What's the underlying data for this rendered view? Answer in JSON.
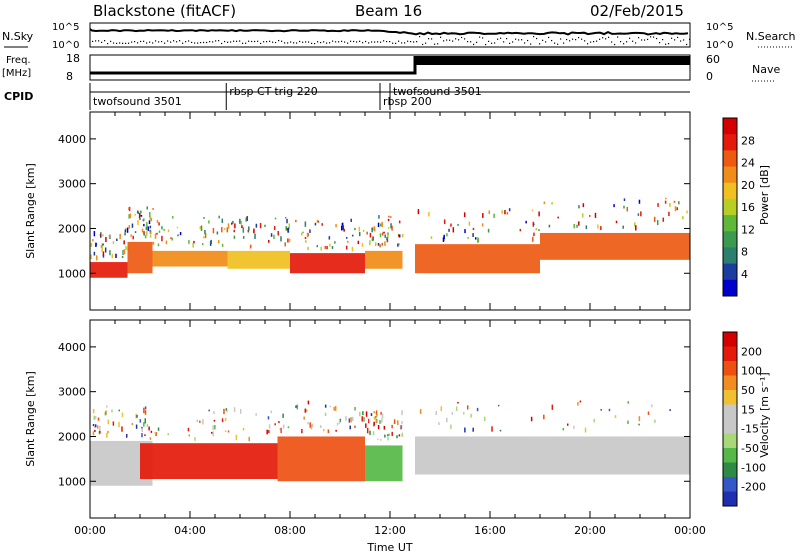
{
  "header": {
    "station": "Blackstone (fitACF)",
    "beam": "Beam 16",
    "date": "02/Feb/2015"
  },
  "strips": {
    "nsky_label": "N.Sky",
    "nsearch_label": "N.Search",
    "noise_ticks": [
      "10^5",
      "10^0"
    ],
    "freq_label_1": "Freq.",
    "freq_label_2": "[MHz]",
    "freq_ticks": [
      "18",
      "8"
    ],
    "nave_label": "Nave",
    "nave_ticks": [
      "60",
      "0"
    ],
    "cpid_label": "CPID"
  },
  "cpid": [
    {
      "name": "twofsound 3501",
      "start_h": 0.0,
      "end_h": 5.45
    },
    {
      "name": "rbsp CT-trig 220",
      "start_h": 5.45,
      "end_h": 11.6
    },
    {
      "name": "rbsp 200",
      "start_h": 11.6,
      "end_h": 12.0
    },
    {
      "name": "twofsound 3501",
      "start_h": 12.0,
      "end_h": 24.0
    }
  ],
  "chart_data": [
    {
      "type": "heatmap",
      "ylabel": "Slant Range [km]",
      "xlim_h": [
        0,
        24
      ],
      "ylim_km": [
        180,
        4600
      ],
      "yticks": [
        "1000",
        "2000",
        "3000",
        "4000"
      ],
      "colorbar": {
        "label": "Power [dB]",
        "ticks": [
          "28",
          "24",
          "20",
          "16",
          "12",
          "8",
          "4"
        ],
        "colors": [
          "#0000cc",
          "#1a3da0",
          "#2a7f6e",
          "#3c9a50",
          "#5fb83a",
          "#b7cf24",
          "#f0c020",
          "#f08c18",
          "#ee5a12",
          "#e41a0a",
          "#d40000"
        ]
      },
      "bands": [
        {
          "start_h": 0.0,
          "end_h": 1.5,
          "range_km": [
            900,
            1250
          ],
          "color": "#e41a0a"
        },
        {
          "start_h": 1.5,
          "end_h": 2.5,
          "range_km": [
            1000,
            1700
          ],
          "color": "#ee5a12"
        },
        {
          "start_h": 2.5,
          "end_h": 5.5,
          "range_km": [
            1150,
            1500
          ],
          "color": "#f08c18"
        },
        {
          "start_h": 5.5,
          "end_h": 8.0,
          "range_km": [
            1100,
            1500
          ],
          "color": "#f0c020"
        },
        {
          "start_h": 8.0,
          "end_h": 11.0,
          "range_km": [
            1000,
            1450
          ],
          "color": "#e41a0a"
        },
        {
          "start_h": 11.0,
          "end_h": 12.5,
          "range_km": [
            1100,
            1500
          ],
          "color": "#f08c18"
        },
        {
          "start_h": 13.0,
          "end_h": 18.0,
          "range_km": [
            1000,
            1650
          ],
          "color": "#ee5a12"
        },
        {
          "start_h": 18.0,
          "end_h": 24.0,
          "range_km": [
            1300,
            1900
          ],
          "color": "#ee5a12"
        }
      ]
    },
    {
      "type": "heatmap",
      "ylabel": "Slant Range [km]",
      "xlabel": "Time UT",
      "xlim_h": [
        0,
        24
      ],
      "ylim_km": [
        180,
        4600
      ],
      "yticks": [
        "1000",
        "2000",
        "3000",
        "4000"
      ],
      "xticks": [
        "00:00",
        "04:00",
        "08:00",
        "12:00",
        "16:00",
        "20:00",
        "00:00"
      ],
      "colorbar": {
        "label": "Velocity [m s⁻¹]",
        "ticks": [
          "200",
          "100",
          "50",
          "15",
          "-15",
          "-50",
          "-100",
          "-200"
        ],
        "colors": [
          "#1e2fb0",
          "#3557c8",
          "#2e8b46",
          "#56b848",
          "#a8d878",
          "#c8c8c8",
          "#c8c8c8",
          "#f0c030",
          "#f08c20",
          "#ee5012",
          "#e41a0a",
          "#d40000"
        ]
      },
      "bands": [
        {
          "start_h": 0.0,
          "end_h": 2.5,
          "range_km": [
            900,
            1900
          ],
          "color": "#c8c8c8"
        },
        {
          "start_h": 2.0,
          "end_h": 7.5,
          "range_km": [
            1050,
            1850
          ],
          "color": "#e41a0a"
        },
        {
          "start_h": 7.5,
          "end_h": 11.0,
          "range_km": [
            1000,
            2000
          ],
          "color": "#ee5012"
        },
        {
          "start_h": 11.0,
          "end_h": 12.5,
          "range_km": [
            1000,
            1800
          ],
          "color": "#56b848"
        },
        {
          "start_h": 13.0,
          "end_h": 24.0,
          "range_km": [
            1150,
            2000
          ],
          "color": "#c8c8c8"
        }
      ]
    }
  ]
}
